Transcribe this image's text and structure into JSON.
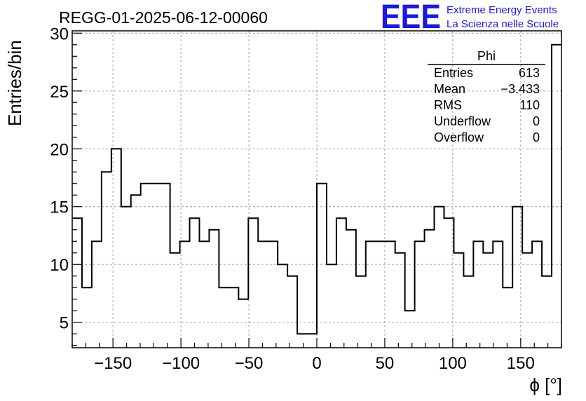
{
  "chart_data": {
    "type": "histogram",
    "title": "REGG-01-2025-06-12-00060",
    "xlabel": "ϕ [°]",
    "ylabel": "Entries/bin",
    "xlim": [
      -180,
      180
    ],
    "ylim": [
      2.8,
      30.2
    ],
    "bin_width": 7.2,
    "x_ticks": [
      -150,
      -100,
      -50,
      0,
      50,
      100,
      150
    ],
    "x_tick_labels": [
      "−150",
      "−100",
      "−50",
      "0",
      "50",
      "100",
      "150"
    ],
    "y_ticks": [
      5,
      10,
      15,
      20,
      25,
      30
    ],
    "y_tick_labels": [
      "5",
      "10",
      "15",
      "20",
      "25",
      "30"
    ],
    "grid": true,
    "values": [
      14,
      8,
      12,
      18,
      20,
      15,
      16,
      17,
      17,
      17,
      11,
      12,
      14,
      12,
      13,
      8,
      8,
      7,
      14,
      12,
      12,
      10,
      9,
      4,
      4,
      17,
      10,
      14,
      13,
      9,
      12,
      12,
      12,
      11,
      6,
      12,
      13,
      15,
      14,
      11,
      9,
      12,
      11,
      12,
      8,
      15,
      11,
      12,
      9,
      29
    ],
    "stats": {
      "name": "Phi",
      "rows": [
        {
          "label": "Entries",
          "value": "613"
        },
        {
          "label": "Mean",
          "value": "−3.433"
        },
        {
          "label": "RMS",
          "value": "110"
        },
        {
          "label": "Underflow",
          "value": "0"
        },
        {
          "label": "Overflow",
          "value": "0"
        }
      ]
    }
  },
  "logo": {
    "text": "EEE",
    "line1": "Extreme Energy Events",
    "line2": "La Scienza nelle Scuole",
    "color": "#1a1adc"
  }
}
